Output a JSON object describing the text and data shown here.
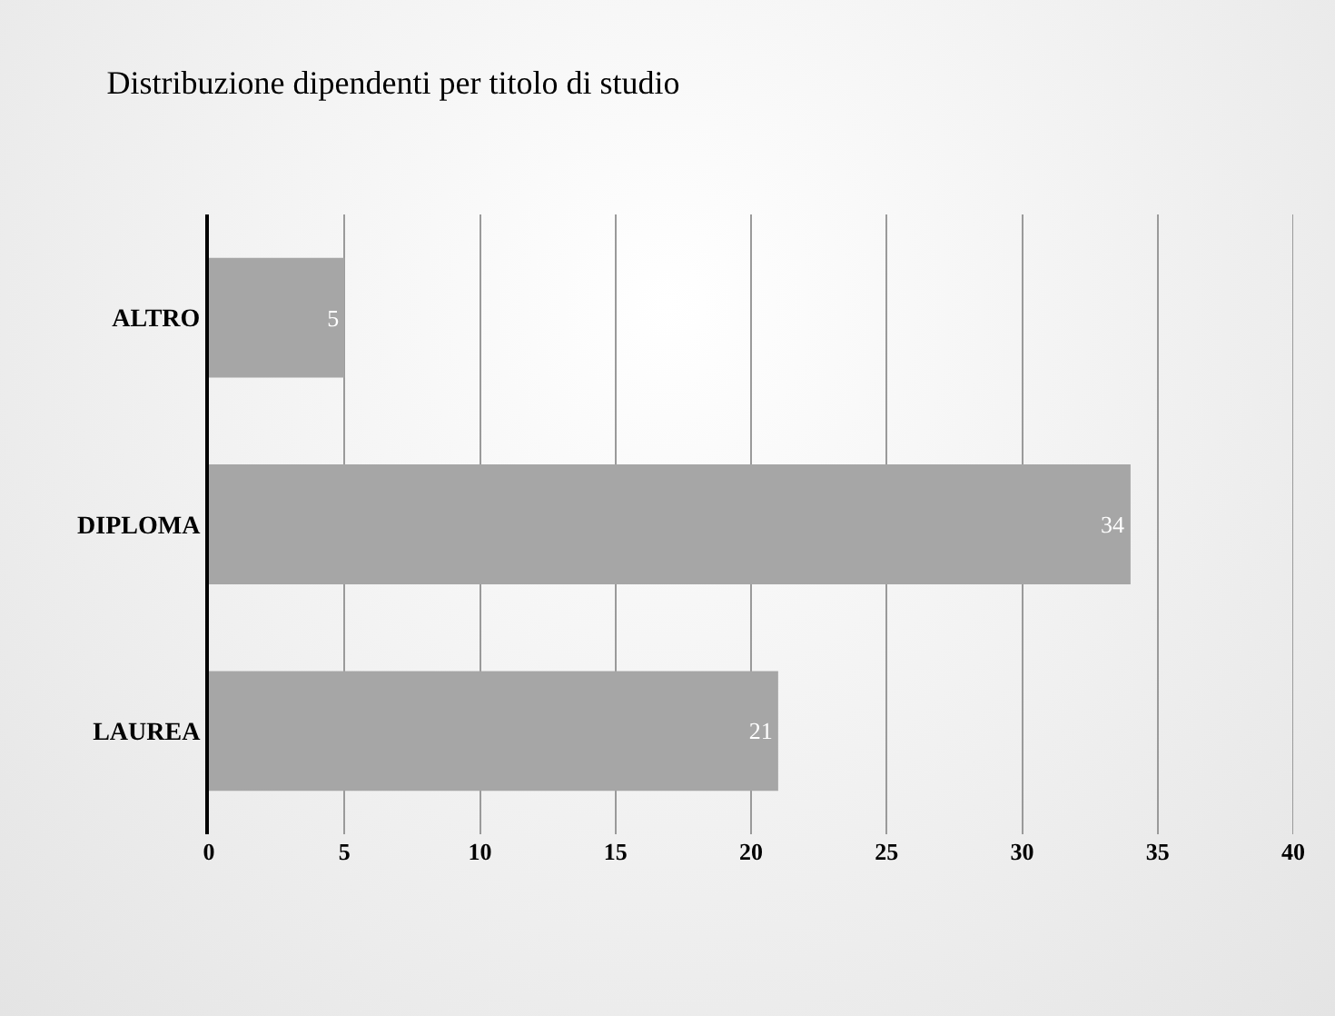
{
  "chart_data": {
    "type": "bar",
    "orientation": "horizontal",
    "title": "Distribuzione dipendenti per titolo di studio",
    "categories": [
      "ALTRO",
      "DIPLOMA",
      "LAUREA"
    ],
    "values": [
      5,
      34,
      21
    ],
    "color": "#a6a6a6",
    "xlim": [
      0,
      40
    ],
    "xticks": [
      0,
      5,
      10,
      15,
      20,
      25,
      30,
      35,
      40
    ],
    "grid": "x",
    "data_labels": true
  }
}
